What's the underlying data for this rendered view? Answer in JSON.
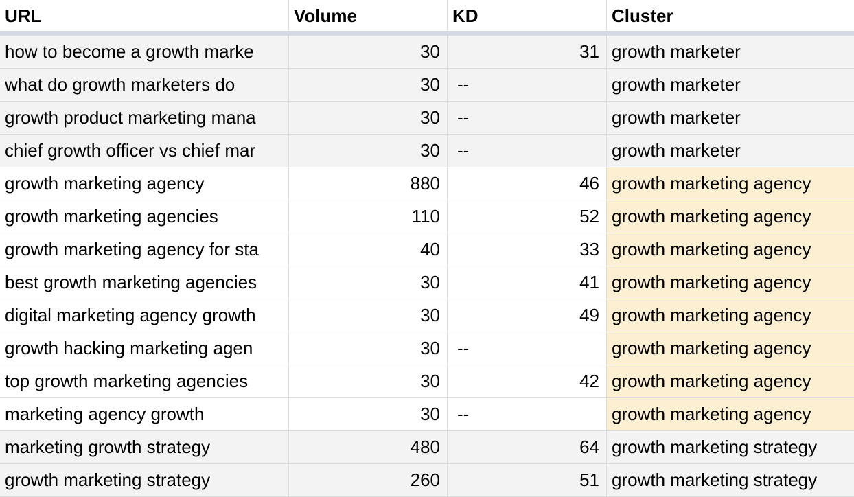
{
  "table": {
    "header": [
      "URL",
      "Volume",
      "KD",
      "Cluster"
    ],
    "rows": [
      [
        "how to become a growth marke",
        30,
        31,
        "growth marketer"
      ],
      [
        "what do growth marketers do",
        30,
        "--",
        "growth marketer"
      ],
      [
        "growth product marketing mana",
        30,
        "--",
        "growth marketer"
      ],
      [
        "chief growth officer vs chief mar",
        30,
        "--",
        "growth marketer"
      ],
      [
        "growth marketing agency",
        880,
        46,
        "growth marketing agency"
      ],
      [
        "growth marketing agencies",
        110,
        52,
        "growth marketing agency"
      ],
      [
        "growth marketing agency for sta",
        40,
        33,
        "growth marketing agency"
      ],
      [
        "best growth marketing agencies",
        30,
        41,
        "growth marketing agency"
      ],
      [
        "digital marketing agency growth",
        30,
        49,
        "growth marketing agency"
      ],
      [
        "growth hacking marketing agen",
        30,
        "--",
        "growth marketing agency"
      ],
      [
        "top growth marketing agencies",
        30,
        42,
        "growth marketing agency"
      ],
      [
        "marketing agency growth",
        30,
        "--",
        "growth marketing agency"
      ],
      [
        "marketing growth strategy",
        480,
        64,
        "growth marketing strategy"
      ],
      [
        "growth marketing strategy",
        260,
        51,
        "growth marketing strategy"
      ]
    ]
  }
}
